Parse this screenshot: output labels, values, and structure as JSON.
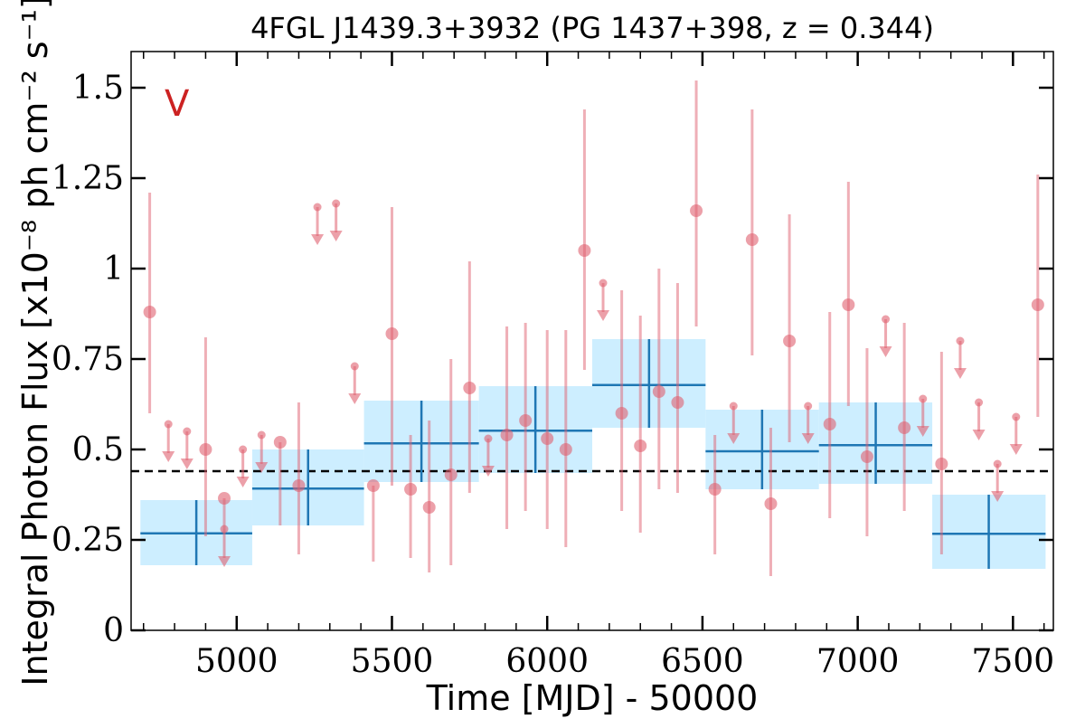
{
  "chart_data": {
    "type": "scatter",
    "title": "4FGL J1439.3+3932 (PG 1437+398, z = 0.344)",
    "xlabel": "Time [MJD] - 50000",
    "ylabel": "Integral Photon Flux [x10⁻⁸ ph cm⁻² s⁻¹]",
    "panel_label": "V",
    "xlim": [
      4660,
      7630
    ],
    "ylim": [
      0,
      1.6
    ],
    "x_ticks": [
      5000,
      5500,
      6000,
      6500,
      7000,
      7500
    ],
    "x_tick_labels": [
      "5000",
      "5500",
      "6000",
      "6500",
      "7000",
      "7500"
    ],
    "y_ticks": [
      0,
      0.25,
      0.5,
      0.75,
      1,
      1.25,
      1.5
    ],
    "y_tick_labels": [
      "0",
      "0.25",
      "0.5",
      "0.75",
      "1",
      "1.25",
      "1.5"
    ],
    "grid": false,
    "reference_line": 0.44,
    "colors": {
      "detection": "#e06070",
      "upper_limit": "#e06070",
      "block_fill": "#cdeeff",
      "block_line": "#1f77b4",
      "reference_line": "#000000",
      "panel_label": "#cc2222"
    },
    "detections": [
      {
        "x": 4720,
        "y": 0.88,
        "lo": 0.6,
        "hi": 1.21
      },
      {
        "x": 4900,
        "y": 0.5,
        "lo": 0.26,
        "hi": 0.81
      },
      {
        "x": 4960,
        "y": 0.365,
        "lo": 0.28,
        "hi": 0.365
      },
      {
        "x": 5140,
        "y": 0.52,
        "lo": 0.29,
        "hi": 0.52
      },
      {
        "x": 5200,
        "y": 0.4,
        "lo": 0.21,
        "hi": 0.63
      },
      {
        "x": 5440,
        "y": 0.4,
        "lo": 0.19,
        "hi": 0.4
      },
      {
        "x": 5500,
        "y": 0.82,
        "lo": 0.4,
        "hi": 1.17
      },
      {
        "x": 5560,
        "y": 0.39,
        "lo": 0.2,
        "hi": 0.54
      },
      {
        "x": 5620,
        "y": 0.34,
        "lo": 0.16,
        "hi": 0.58
      },
      {
        "x": 5690,
        "y": 0.43,
        "lo": 0.18,
        "hi": 0.75
      },
      {
        "x": 5750,
        "y": 0.67,
        "lo": 0.38,
        "hi": 1.02
      },
      {
        "x": 5870,
        "y": 0.54,
        "lo": 0.28,
        "hi": 0.84
      },
      {
        "x": 5930,
        "y": 0.58,
        "lo": 0.33,
        "hi": 0.85
      },
      {
        "x": 6000,
        "y": 0.53,
        "lo": 0.28,
        "hi": 0.83
      },
      {
        "x": 6060,
        "y": 0.5,
        "lo": 0.23,
        "hi": 0.83
      },
      {
        "x": 6120,
        "y": 1.05,
        "lo": 0.72,
        "hi": 1.44
      },
      {
        "x": 6240,
        "y": 0.6,
        "lo": 0.33,
        "hi": 0.94
      },
      {
        "x": 6300,
        "y": 0.51,
        "lo": 0.27,
        "hi": 0.87
      },
      {
        "x": 6360,
        "y": 0.66,
        "lo": 0.39,
        "hi": 1.0
      },
      {
        "x": 6420,
        "y": 0.63,
        "lo": 0.38,
        "hi": 0.96
      },
      {
        "x": 6480,
        "y": 1.16,
        "lo": 0.84,
        "hi": 1.52
      },
      {
        "x": 6540,
        "y": 0.39,
        "lo": 0.21,
        "hi": 0.54
      },
      {
        "x": 6660,
        "y": 1.08,
        "lo": 0.76,
        "hi": 1.44
      },
      {
        "x": 6720,
        "y": 0.35,
        "lo": 0.15,
        "hi": 0.56
      },
      {
        "x": 6780,
        "y": 0.8,
        "lo": 0.52,
        "hi": 1.15
      },
      {
        "x": 6910,
        "y": 0.57,
        "lo": 0.31,
        "hi": 0.88
      },
      {
        "x": 6970,
        "y": 0.9,
        "lo": 0.62,
        "hi": 1.24
      },
      {
        "x": 7030,
        "y": 0.48,
        "lo": 0.26,
        "hi": 0.78
      },
      {
        "x": 7150,
        "y": 0.56,
        "lo": 0.33,
        "hi": 0.85
      },
      {
        "x": 7270,
        "y": 0.46,
        "lo": 0.21,
        "hi": 0.77
      },
      {
        "x": 7580,
        "y": 0.9,
        "lo": 0.59,
        "hi": 1.26
      }
    ],
    "upper_limits": [
      {
        "x": 4780,
        "y": 0.57
      },
      {
        "x": 4840,
        "y": 0.55
      },
      {
        "x": 4960,
        "y": 0.28
      },
      {
        "x": 5020,
        "y": 0.5
      },
      {
        "x": 5080,
        "y": 0.54
      },
      {
        "x": 5260,
        "y": 1.17
      },
      {
        "x": 5320,
        "y": 1.18
      },
      {
        "x": 5380,
        "y": 0.73
      },
      {
        "x": 5810,
        "y": 0.53
      },
      {
        "x": 6180,
        "y": 0.96
      },
      {
        "x": 6600,
        "y": 0.62
      },
      {
        "x": 6840,
        "y": 0.62
      },
      {
        "x": 7090,
        "y": 0.86
      },
      {
        "x": 7210,
        "y": 0.64
      },
      {
        "x": 7330,
        "y": 0.8
      },
      {
        "x": 7390,
        "y": 0.63
      },
      {
        "x": 7450,
        "y": 0.46
      },
      {
        "x": 7510,
        "y": 0.59
      }
    ],
    "blocks": [
      {
        "x_start": 4690,
        "x_end": 5050,
        "x_center": 4870,
        "y": 0.268,
        "y_lo": 0.18,
        "y_hi": 0.36
      },
      {
        "x_start": 5050,
        "x_end": 5410,
        "x_center": 5230,
        "y": 0.392,
        "y_lo": 0.29,
        "y_hi": 0.5
      },
      {
        "x_start": 5410,
        "x_end": 5780,
        "x_center": 5595,
        "y": 0.517,
        "y_lo": 0.41,
        "y_hi": 0.635
      },
      {
        "x_start": 5780,
        "x_end": 6145,
        "x_center": 5962,
        "y": 0.552,
        "y_lo": 0.435,
        "y_hi": 0.675
      },
      {
        "x_start": 6145,
        "x_end": 6510,
        "x_center": 6328,
        "y": 0.678,
        "y_lo": 0.56,
        "y_hi": 0.805
      },
      {
        "x_start": 6510,
        "x_end": 6875,
        "x_center": 6692,
        "y": 0.495,
        "y_lo": 0.39,
        "y_hi": 0.61
      },
      {
        "x_start": 6875,
        "x_end": 7240,
        "x_center": 7058,
        "y": 0.512,
        "y_lo": 0.405,
        "y_hi": 0.63
      },
      {
        "x_start": 7240,
        "x_end": 7605,
        "x_center": 7422,
        "y": 0.267,
        "y_lo": 0.17,
        "y_hi": 0.375
      }
    ]
  }
}
